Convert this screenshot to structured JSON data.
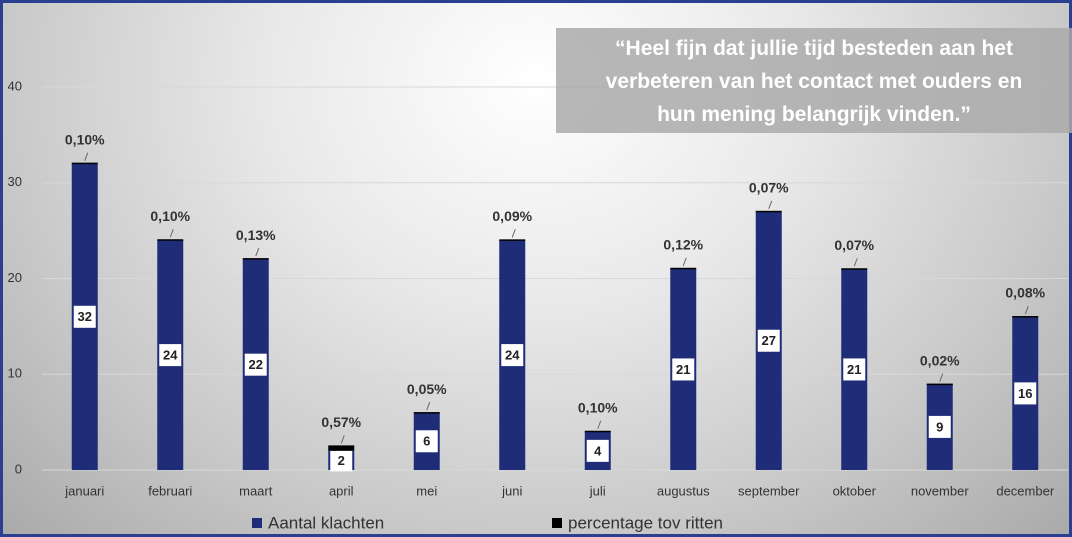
{
  "chart_data": {
    "type": "bar",
    "annotation": [
      "“Heel fijn dat jullie tijd besteden aan het",
      "verbeteren van het contact met ouders en",
      "hun mening belangrijk vinden.”"
    ],
    "categories": [
      "januari",
      "februari",
      "maart",
      "april",
      "mei",
      "juni",
      "juli",
      "augustus",
      "september",
      "oktober",
      "november",
      "december"
    ],
    "series": [
      {
        "name": "Aantal klachten",
        "color": "#1f2d78",
        "values": [
          32,
          24,
          22,
          2,
          6,
          24,
          4,
          21,
          27,
          21,
          9,
          16
        ]
      },
      {
        "name": "percentage tov ritten",
        "color": "#000000",
        "values": [
          0.1,
          0.1,
          0.13,
          0.57,
          0.05,
          0.09,
          0.1,
          0.12,
          0.07,
          0.07,
          0.02,
          0.08
        ],
        "value_labels": [
          "0,10%",
          "0,10%",
          "0,13%",
          "0,57%",
          "0,05%",
          "0,09%",
          "0,10%",
          "0,12%",
          "0,07%",
          "0,07%",
          "0,02%",
          "0,08%"
        ]
      }
    ],
    "stacked": true,
    "ylim": [
      0,
      40
    ],
    "yticks": [
      0,
      10,
      20,
      30,
      40
    ],
    "grid": true,
    "legend": "bottom"
  }
}
